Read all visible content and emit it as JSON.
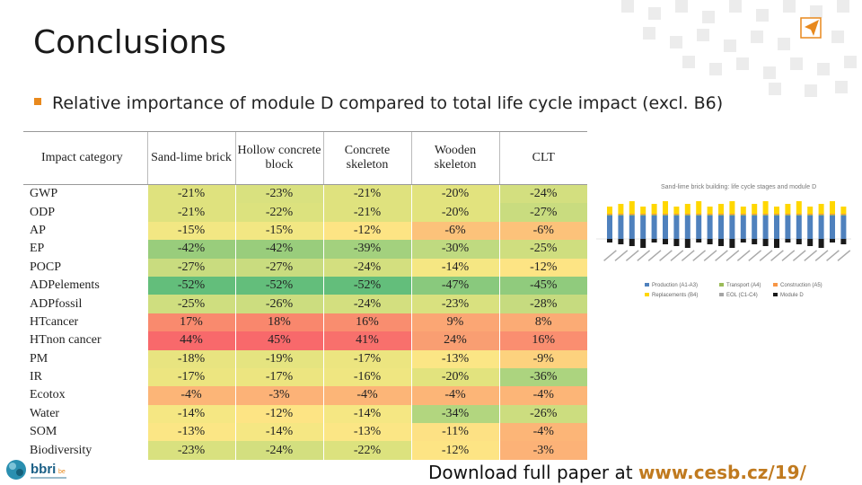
{
  "slide": {
    "title": "Conclusions",
    "bullet": "Relative importance of module D compared to total life cycle impact (excl. B6)",
    "footer": {
      "prefix": "Download full paper at ",
      "link": "www.cesb.cz/19/"
    },
    "logo": {
      "text": "bbri",
      "suffix": "be"
    }
  },
  "table": {
    "headers": [
      "Impact category",
      "Sand-lime brick",
      "Hollow concrete block",
      "Concrete skeleton",
      "Wooden skeleton",
      "CLT"
    ],
    "rows": [
      {
        "cat": "GWP",
        "vals": [
          "-21%",
          "-23%",
          "-21%",
          "-20%",
          "-24%"
        ],
        "colors": [
          "#dfe27e",
          "#d9e17f",
          "#dfe27e",
          "#e2e37e",
          "#d3df7f"
        ]
      },
      {
        "cat": "ODP",
        "vals": [
          "-21%",
          "-22%",
          "-21%",
          "-20%",
          "-27%"
        ],
        "colors": [
          "#dfe27e",
          "#dce27e",
          "#dfe27e",
          "#e2e37e",
          "#c9dc7f"
        ]
      },
      {
        "cat": "AP",
        "vals": [
          "-15%",
          "-15%",
          "-12%",
          "-6%",
          "-6%"
        ],
        "colors": [
          "#f2e783",
          "#f2e783",
          "#fde484",
          "#fcc27a",
          "#fcc27a"
        ]
      },
      {
        "cat": "EP",
        "vals": [
          "-42%",
          "-42%",
          "-39%",
          "-30%",
          "-25%"
        ],
        "colors": [
          "#99cd7c",
          "#99cd7c",
          "#a3d17e",
          "#bfda80",
          "#cfde7f"
        ]
      },
      {
        "cat": "POCP",
        "vals": [
          "-27%",
          "-27%",
          "-24%",
          "-14%",
          "-12%"
        ],
        "colors": [
          "#c9dc7f",
          "#c9dc7f",
          "#d3df7f",
          "#f5e783",
          "#fde484"
        ]
      },
      {
        "cat": "ADPelements",
        "vals": [
          "-52%",
          "-52%",
          "-52%",
          "-47%",
          "-45%"
        ],
        "colors": [
          "#63be7b",
          "#63be7b",
          "#63be7b",
          "#89c97d",
          "#90cb7d"
        ]
      },
      {
        "cat": "ADPfossil",
        "vals": [
          "-25%",
          "-26%",
          "-24%",
          "-23%",
          "-28%"
        ],
        "colors": [
          "#cfde7f",
          "#ccdd7f",
          "#d3df7f",
          "#d9e17f",
          "#c6db7f"
        ]
      },
      {
        "cat": "HTcancer",
        "vals": [
          "17%",
          "18%",
          "16%",
          "9%",
          "8%"
        ],
        "colors": [
          "#f98a6e",
          "#f9876d",
          "#f98d6f",
          "#fba674",
          "#fbab75"
        ]
      },
      {
        "cat": "HTnon cancer",
        "vals": [
          "44%",
          "45%",
          "41%",
          "24%",
          "16%"
        ],
        "colors": [
          "#f8696b",
          "#f8696b",
          "#f8706c",
          "#f99e72",
          "#fa8e70"
        ]
      },
      {
        "cat": "PM",
        "vals": [
          "-18%",
          "-19%",
          "-17%",
          "-13%",
          "-9%"
        ],
        "colors": [
          "#e8e480",
          "#e5e480",
          "#ece580",
          "#fbe685",
          "#fdd27e"
        ]
      },
      {
        "cat": "IR",
        "vals": [
          "-17%",
          "-17%",
          "-16%",
          "-20%",
          "-36%"
        ],
        "colors": [
          "#ece580",
          "#ece580",
          "#efe681",
          "#e2e37e",
          "#acd47f"
        ]
      },
      {
        "cat": "Ecotox",
        "vals": [
          "-4%",
          "-3%",
          "-4%",
          "-4%",
          "-4%"
        ],
        "colors": [
          "#fcb577",
          "#fcb277",
          "#fcb577",
          "#fcb577",
          "#fcb577"
        ]
      },
      {
        "cat": "Water",
        "vals": [
          "-14%",
          "-12%",
          "-14%",
          "-34%",
          "-26%"
        ],
        "colors": [
          "#f5e783",
          "#fde484",
          "#f5e783",
          "#b2d67f",
          "#ccdd7f"
        ]
      },
      {
        "cat": "SOM",
        "vals": [
          "-13%",
          "-14%",
          "-13%",
          "-11%",
          "-4%"
        ],
        "colors": [
          "#fbe685",
          "#f5e783",
          "#fbe685",
          "#fde184",
          "#fcb577"
        ]
      },
      {
        "cat": "Biodiversity",
        "vals": [
          "-23%",
          "-24%",
          "-22%",
          "-12%",
          "-3%"
        ],
        "colors": [
          "#d9e17f",
          "#d3df7f",
          "#dce27e",
          "#fde484",
          "#fcb277"
        ]
      }
    ]
  },
  "mini_chart": {
    "title": "Sand-lime brick building: life cycle stages and module D",
    "legend": [
      "Production (A1-A3)",
      "Transport (A4)",
      "Construction (A5)",
      "Replacements (B4)",
      "EOL (C1-C4)",
      "Module D"
    ],
    "colors": {
      "production": "#4f81bd",
      "transport": "#9bbb59",
      "construction": "#f79646",
      "replacement": "#ffd700",
      "eol": "#a5a5a5",
      "moduled": "#1a1a1a"
    }
  },
  "brand_colors": {
    "accent": "#e8891d",
    "link": "#c07a1f"
  }
}
